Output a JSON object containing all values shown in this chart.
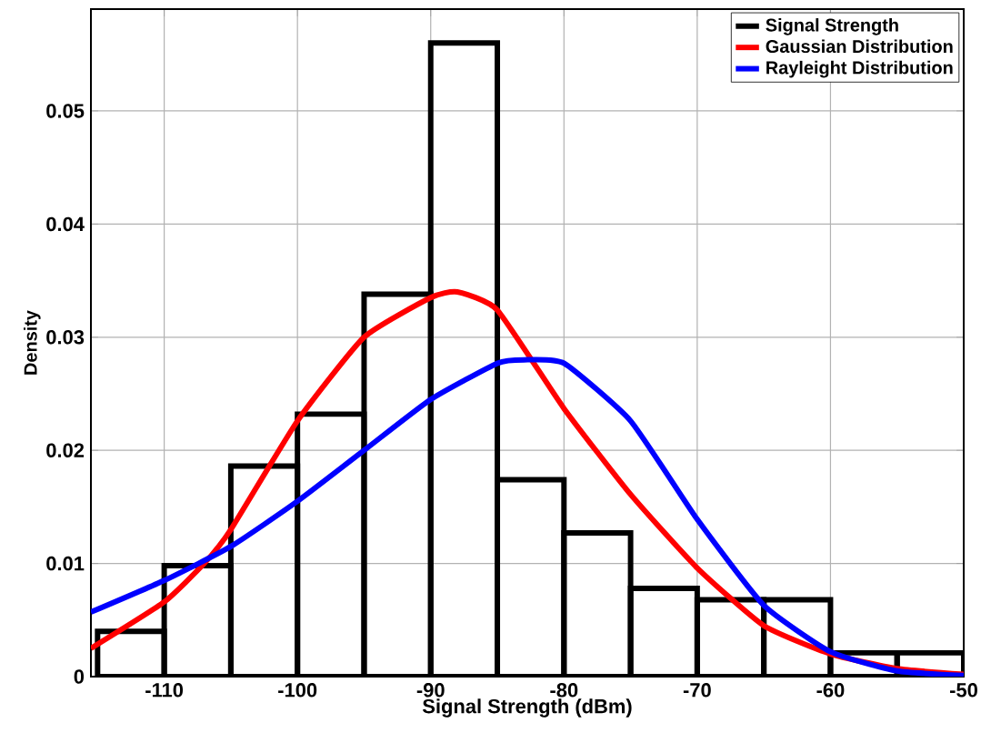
{
  "chart_data": {
    "type": "histogram",
    "xlabel": "Signal Strength (dBm)",
    "ylabel": "Density",
    "xlim": [
      -115.5,
      -50
    ],
    "ylim": [
      0,
      0.059
    ],
    "xticks": [
      -110,
      -100,
      -90,
      -80,
      -70,
      -60,
      -50
    ],
    "yticks": [
      0,
      0.01,
      0.02,
      0.03,
      0.04,
      0.05
    ],
    "grid": true,
    "legend": "top right",
    "series": [
      {
        "name": "Signal Strength",
        "color": "#000000",
        "bins": [
          -115,
          -110,
          -105,
          -100,
          -95,
          -90,
          -85,
          -80,
          -75,
          -70,
          -65,
          -60,
          -55,
          -50
        ],
        "values": [
          0.004,
          0.0098,
          0.0186,
          0.0232,
          0.0338,
          0.056,
          0.0174,
          0.0127,
          0.0078,
          0.0068,
          0.0068,
          0.0021,
          0.0021
        ]
      },
      {
        "name": "Gaussian Distribution",
        "type": "line",
        "color": "#ff0000",
        "x": [
          -115.5,
          -110,
          -107,
          -105,
          -100,
          -95,
          -90,
          -88,
          -85,
          -80,
          -75,
          -70,
          -65,
          -60,
          -55,
          -50
        ],
        "values": [
          0.0025,
          0.0066,
          0.01,
          0.013,
          0.0226,
          0.03,
          0.0335,
          0.034,
          0.0324,
          0.0237,
          0.0161,
          0.0096,
          0.0045,
          0.002,
          0.0007,
          0.0002
        ]
      },
      {
        "name": "Rayleight Distribution",
        "type": "line",
        "color": "#0000ff",
        "x": [
          -115.5,
          -110,
          -105,
          -100,
          -95,
          -90,
          -85,
          -83,
          -80,
          -75,
          -70,
          -65,
          -60,
          -55,
          -50
        ],
        "values": [
          0.0057,
          0.0085,
          0.0115,
          0.0155,
          0.02,
          0.0245,
          0.0277,
          0.028,
          0.0277,
          0.0226,
          0.0139,
          0.0063,
          0.0022,
          0.0005,
          0.0001
        ]
      }
    ]
  }
}
